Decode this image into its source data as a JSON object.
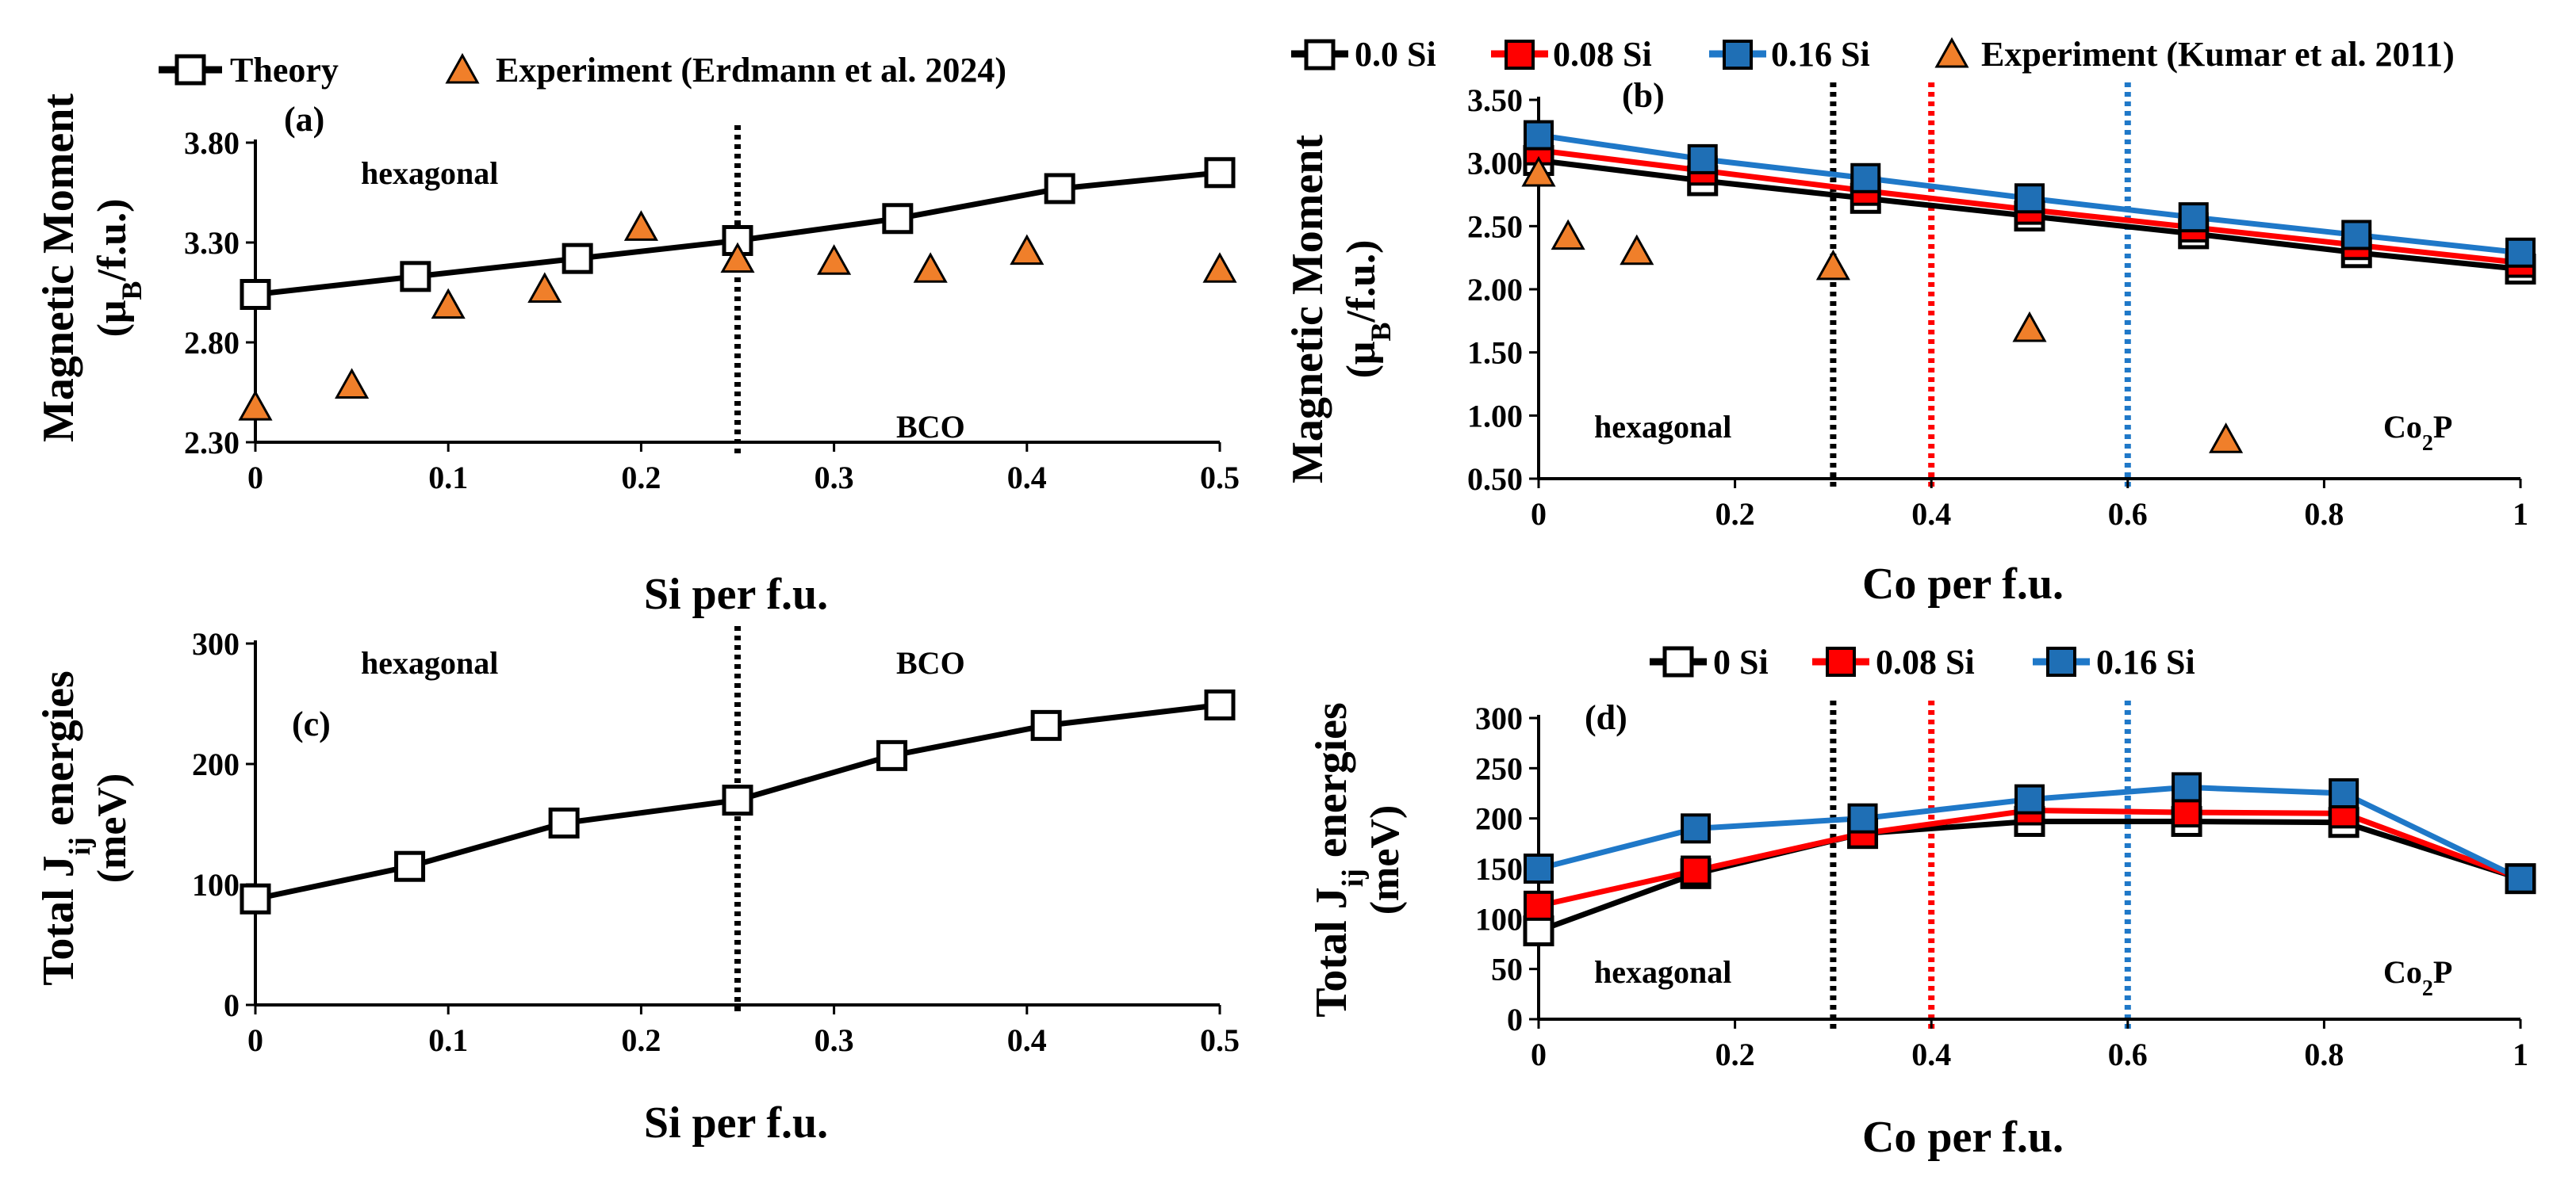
{
  "colors": {
    "black": "#000000",
    "red": "#ff0000",
    "blue": "#1f78c8",
    "blue_marker": "#1f6fb5",
    "orange": "#f07f2a",
    "white": "#ffffff"
  },
  "chart_data": [
    {
      "id": "a",
      "type": "scatter",
      "panel_label": "(a)",
      "xlabel": "Si per f.u.",
      "ylabel_main": "Magnetic Moment",
      "ylabel_unit_pre": "(μ",
      "ylabel_unit_sub": "B",
      "ylabel_unit_post": "/f.u.)",
      "xlim": [
        0,
        0.5
      ],
      "ylim": [
        2.3,
        3.8
      ],
      "xticks": [
        0,
        0.1,
        0.2,
        0.3,
        0.4,
        0.5
      ],
      "xtick_labels": [
        "0",
        "0.1",
        "0.2",
        "0.3",
        "0.4",
        "0.5"
      ],
      "yticks": [
        2.3,
        2.8,
        3.3,
        3.8
      ],
      "ytick_labels": [
        "2.30",
        "2.80",
        "3.30",
        "3.80"
      ],
      "legend": {
        "theory": "Theory",
        "experiment": "Experiment (Erdmann et al. 2024)"
      },
      "annotations": {
        "left": "hexagonal",
        "right": "BCO"
      },
      "phase_boundaries": [
        {
          "x": 0.25,
          "color": "black"
        }
      ],
      "series": [
        {
          "name": "Theory",
          "style": "line-square",
          "color": "black",
          "fill": "white",
          "x": [
            0,
            0.083,
            0.167,
            0.25,
            0.333,
            0.417,
            0.5
          ],
          "y": [
            3.04,
            3.13,
            3.22,
            3.31,
            3.42,
            3.57,
            3.65
          ]
        },
        {
          "name": "Experiment (Erdmann et al. 2024)",
          "style": "triangle",
          "color": "orange",
          "x": [
            0,
            0.05,
            0.1,
            0.15,
            0.2,
            0.25,
            0.3,
            0.35,
            0.4,
            0.5
          ],
          "y": [
            2.47,
            2.58,
            2.98,
            3.06,
            3.37,
            3.21,
            3.2,
            3.16,
            3.25,
            3.16
          ]
        }
      ]
    },
    {
      "id": "b",
      "type": "line",
      "panel_label": "(b)",
      "xlabel": "Co per f.u.",
      "ylabel_main": "Magnetic Moment",
      "ylabel_unit_pre": "(μ",
      "ylabel_unit_sub": "B",
      "ylabel_unit_post": "/f.u.)",
      "xlim": [
        0,
        1
      ],
      "ylim": [
        0.5,
        3.5
      ],
      "xticks": [
        0,
        0.2,
        0.4,
        0.6,
        0.8,
        1
      ],
      "xtick_labels": [
        "0",
        "0.2",
        "0.4",
        "0.6",
        "0.8",
        "1"
      ],
      "yticks": [
        0.5,
        1.0,
        1.5,
        2.0,
        2.5,
        3.0,
        3.5
      ],
      "ytick_labels": [
        "0.50",
        "1.00",
        "1.50",
        "2.00",
        "2.50",
        "3.00",
        "3.50"
      ],
      "legend": {
        "s0": "0.0 Si",
        "s1": "0.08 Si",
        "s2": "0.16 Si",
        "experiment": "Experiment (Kumar et al. 2011)"
      },
      "annotations": {
        "left": "hexagonal",
        "right_main": "Co",
        "right_sub": "2",
        "right_post": "P"
      },
      "phase_boundaries": [
        {
          "x": 0.3,
          "color": "black"
        },
        {
          "x": 0.4,
          "color": "red"
        },
        {
          "x": 0.6,
          "color": "blue"
        }
      ],
      "series": [
        {
          "name": "0.0 Si",
          "style": "line-square",
          "color": "black",
          "fill": "white",
          "x": [
            0,
            0.167,
            0.333,
            0.5,
            0.667,
            0.833,
            1
          ],
          "y": [
            3.02,
            2.86,
            2.72,
            2.58,
            2.44,
            2.29,
            2.16
          ]
        },
        {
          "name": "0.08 Si",
          "style": "line-square",
          "color": "red",
          "fill": "red",
          "x": [
            0,
            0.167,
            0.333,
            0.5,
            0.667,
            0.833,
            1
          ],
          "y": [
            3.1,
            2.94,
            2.78,
            2.63,
            2.49,
            2.35,
            2.21
          ]
        },
        {
          "name": "0.16 Si",
          "style": "line-square",
          "color": "blue",
          "fill": "blue",
          "x": [
            0,
            0.167,
            0.333,
            0.5,
            0.667,
            0.833,
            1
          ],
          "y": [
            3.22,
            3.03,
            2.88,
            2.72,
            2.57,
            2.43,
            2.29
          ]
        },
        {
          "name": "Experiment (Kumar et al. 2011)",
          "style": "triangle",
          "color": "orange",
          "x": [
            0,
            0.03,
            0.1,
            0.3,
            0.5,
            0.7
          ],
          "y": [
            2.91,
            2.41,
            2.29,
            2.17,
            1.68,
            0.8
          ]
        }
      ]
    },
    {
      "id": "c",
      "type": "line",
      "panel_label": "(c)",
      "xlabel": "Si per f.u.",
      "ylabel_main_pre": "Total J",
      "ylabel_main_sub": "ij",
      "ylabel_main_post": " energies",
      "ylabel_unit": "(meV)",
      "xlim": [
        0,
        0.5
      ],
      "ylim": [
        0,
        300
      ],
      "xticks": [
        0,
        0.1,
        0.2,
        0.3,
        0.4,
        0.5
      ],
      "xtick_labels": [
        "0",
        "0.1",
        "0.2",
        "0.3",
        "0.4",
        "0.5"
      ],
      "yticks": [
        0,
        100,
        200,
        300
      ],
      "ytick_labels": [
        "0",
        "100",
        "200",
        "300"
      ],
      "annotations": {
        "left": "hexagonal",
        "right": "BCO"
      },
      "phase_boundaries": [
        {
          "x": 0.25,
          "color": "black"
        }
      ],
      "series": [
        {
          "name": "Total Jij",
          "style": "line-square",
          "color": "black",
          "fill": "white",
          "x": [
            0,
            0.08,
            0.16,
            0.25,
            0.33,
            0.41,
            0.5
          ],
          "y": [
            88,
            115,
            151,
            170,
            207,
            232,
            249
          ]
        }
      ]
    },
    {
      "id": "d",
      "type": "line",
      "panel_label": "(d)",
      "xlabel": "Co per f.u.",
      "ylabel_main_pre": "Total J",
      "ylabel_main_sub": "ij",
      "ylabel_main_post": " energies",
      "ylabel_unit": "(meV)",
      "xlim": [
        0,
        1
      ],
      "ylim": [
        0,
        300
      ],
      "xticks": [
        0,
        0.2,
        0.4,
        0.6,
        0.8,
        1
      ],
      "xtick_labels": [
        "0",
        "0.2",
        "0.4",
        "0.6",
        "0.8",
        "1"
      ],
      "yticks": [
        0,
        50,
        100,
        150,
        200,
        250,
        300
      ],
      "ytick_labels": [
        "0",
        "50",
        "100",
        "150",
        "200",
        "250",
        "300"
      ],
      "legend": {
        "s0": "0 Si",
        "s1": "0.08 Si",
        "s2": "0.16 Si"
      },
      "annotations": {
        "left": "hexagonal",
        "right_main": "Co",
        "right_sub": "2",
        "right_post": "P"
      },
      "phase_boundaries": [
        {
          "x": 0.3,
          "color": "black"
        },
        {
          "x": 0.4,
          "color": "red"
        },
        {
          "x": 0.6,
          "color": "blue"
        }
      ],
      "series": [
        {
          "name": "0 Si",
          "style": "line-square",
          "color": "black",
          "fill": "white",
          "x": [
            0,
            0.16,
            0.33,
            0.5,
            0.66,
            0.82,
            1
          ],
          "y": [
            88,
            145,
            185,
            197,
            197,
            196,
            140
          ]
        },
        {
          "name": "0.08 Si",
          "style": "line-square",
          "color": "red",
          "fill": "red",
          "x": [
            0,
            0.16,
            0.33,
            0.5,
            0.66,
            0.82,
            1
          ],
          "y": [
            113,
            148,
            185,
            208,
            206,
            205,
            140
          ]
        },
        {
          "name": "0.16 Si",
          "style": "line-square",
          "color": "blue",
          "fill": "blue",
          "x": [
            0,
            0.16,
            0.33,
            0.5,
            0.66,
            0.82,
            1
          ],
          "y": [
            150,
            190,
            200,
            219,
            231,
            225,
            140
          ]
        }
      ]
    }
  ]
}
